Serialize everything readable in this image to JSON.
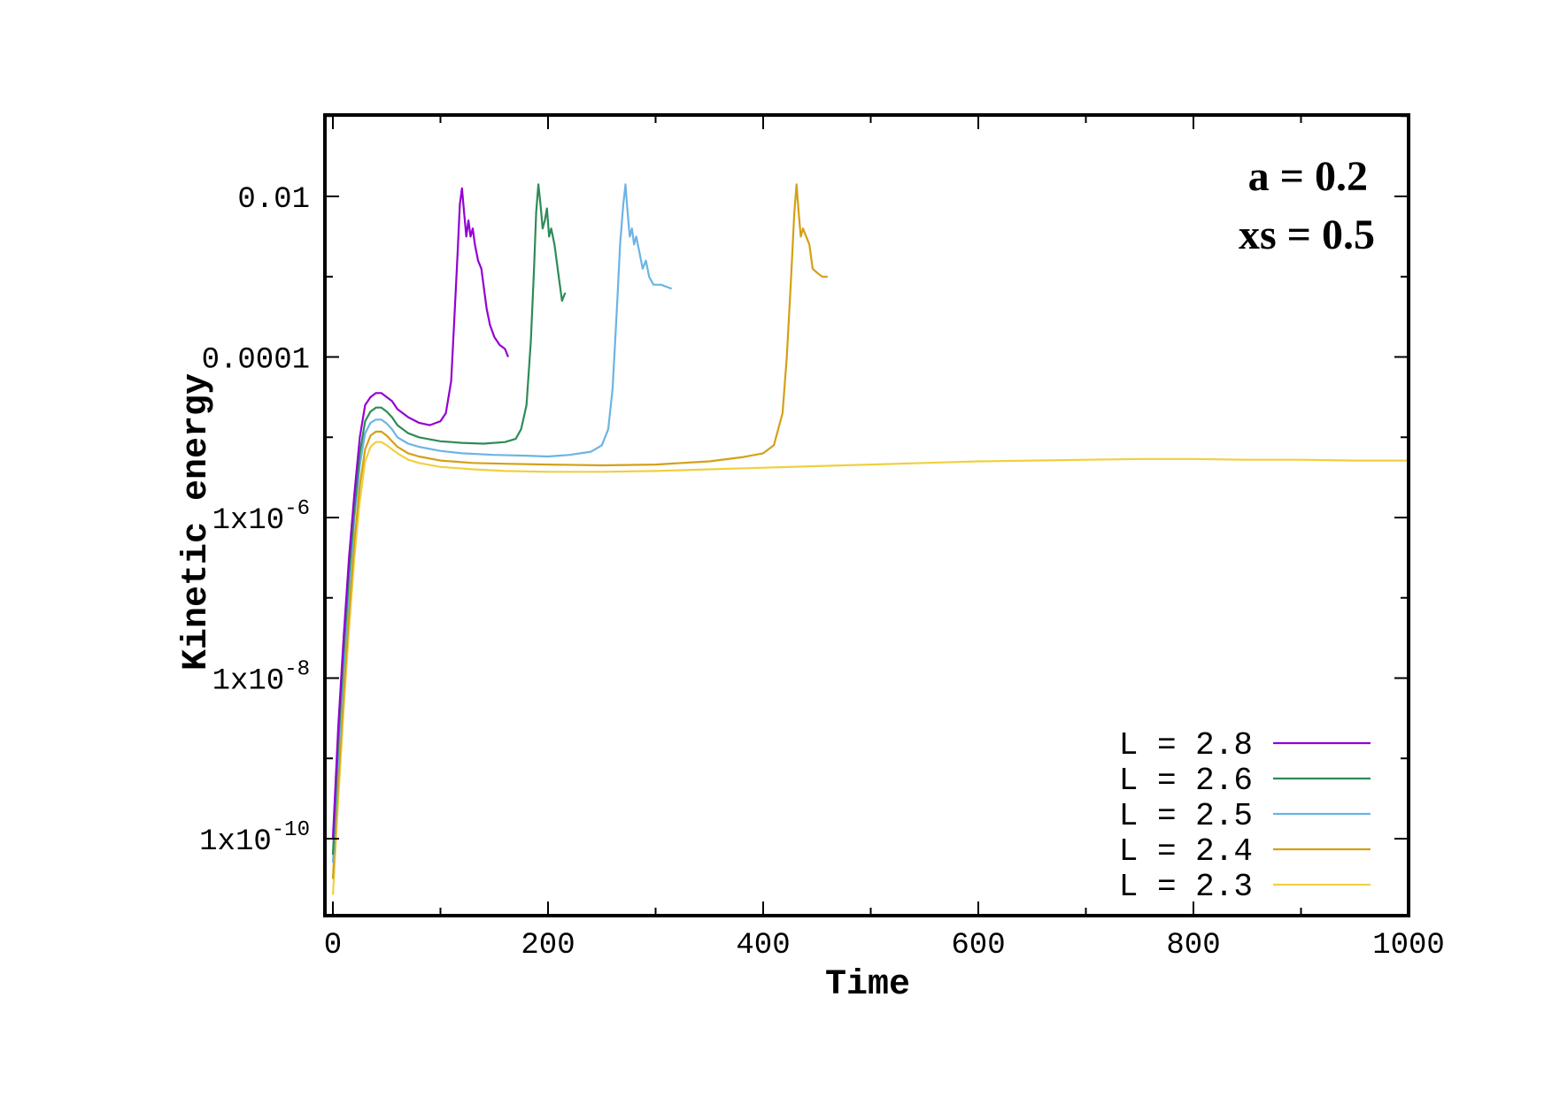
{
  "chart_data": {
    "type": "line",
    "xlabel": "Time",
    "ylabel": "Kinetic energy",
    "yscale": "log",
    "xlim": [
      0,
      1000
    ],
    "ylim_log10": [
      -11.5,
      -1
    ],
    "x_ticks": [
      {
        "value": 0,
        "label": "0"
      },
      {
        "value": 200,
        "label": "200"
      },
      {
        "value": 400,
        "label": "400"
      },
      {
        "value": 600,
        "label": "600"
      },
      {
        "value": 800,
        "label": "800"
      },
      {
        "value": 1000,
        "label": "1000"
      }
    ],
    "y_ticks": [
      {
        "log10": -2,
        "base": "0.01",
        "exp": ""
      },
      {
        "log10": -4,
        "base": "0.0001",
        "exp": ""
      },
      {
        "log10": -6,
        "base": "1x10",
        "exp": "-6"
      },
      {
        "log10": -8,
        "base": "1x10",
        "exp": "-8"
      },
      {
        "log10": -10,
        "base": "1x10",
        "exp": "-10"
      }
    ],
    "annotations": [
      "a = 0.2",
      "xs = 0.5"
    ],
    "legend_position": "bottom-right",
    "grid": false,
    "series": [
      {
        "name": "L = 2.8",
        "color": "#9400d3",
        "points": [
          [
            0,
            -10
          ],
          [
            5,
            -8.6
          ],
          [
            10,
            -7.5
          ],
          [
            15,
            -6.5
          ],
          [
            20,
            -5.7
          ],
          [
            25,
            -5.0
          ],
          [
            30,
            -4.6
          ],
          [
            35,
            -4.5
          ],
          [
            40,
            -4.45
          ],
          [
            45,
            -4.45
          ],
          [
            50,
            -4.5
          ],
          [
            55,
            -4.55
          ],
          [
            60,
            -4.65
          ],
          [
            70,
            -4.75
          ],
          [
            80,
            -4.82
          ],
          [
            90,
            -4.85
          ],
          [
            100,
            -4.8
          ],
          [
            105,
            -4.7
          ],
          [
            110,
            -4.3
          ],
          [
            113,
            -3.5
          ],
          [
            116,
            -2.7
          ],
          [
            118,
            -2.1
          ],
          [
            120,
            -1.9
          ],
          [
            122,
            -2.2
          ],
          [
            124,
            -2.5
          ],
          [
            126,
            -2.3
          ],
          [
            128,
            -2.5
          ],
          [
            130,
            -2.4
          ],
          [
            132,
            -2.6
          ],
          [
            135,
            -2.8
          ],
          [
            138,
            -2.9
          ],
          [
            140,
            -3.1
          ],
          [
            143,
            -3.4
          ],
          [
            146,
            -3.6
          ],
          [
            150,
            -3.75
          ],
          [
            155,
            -3.85
          ],
          [
            160,
            -3.9
          ],
          [
            163,
            -4.0
          ]
        ]
      },
      {
        "name": "L = 2.6",
        "color": "#2e8b57",
        "points": [
          [
            0,
            -10.2
          ],
          [
            5,
            -8.8
          ],
          [
            10,
            -7.7
          ],
          [
            15,
            -6.7
          ],
          [
            20,
            -5.9
          ],
          [
            25,
            -5.2
          ],
          [
            30,
            -4.8
          ],
          [
            35,
            -4.68
          ],
          [
            40,
            -4.63
          ],
          [
            45,
            -4.63
          ],
          [
            50,
            -4.68
          ],
          [
            55,
            -4.75
          ],
          [
            60,
            -4.85
          ],
          [
            70,
            -4.95
          ],
          [
            80,
            -5.0
          ],
          [
            100,
            -5.05
          ],
          [
            120,
            -5.07
          ],
          [
            140,
            -5.08
          ],
          [
            160,
            -5.06
          ],
          [
            170,
            -5.02
          ],
          [
            175,
            -4.9
          ],
          [
            180,
            -4.6
          ],
          [
            184,
            -3.8
          ],
          [
            187,
            -2.9
          ],
          [
            189,
            -2.2
          ],
          [
            191,
            -1.85
          ],
          [
            193,
            -2.1
          ],
          [
            195,
            -2.4
          ],
          [
            197,
            -2.3
          ],
          [
            199,
            -2.15
          ],
          [
            201,
            -2.5
          ],
          [
            203,
            -2.4
          ],
          [
            206,
            -2.6
          ],
          [
            210,
            -3.0
          ],
          [
            213,
            -3.3
          ],
          [
            216,
            -3.2
          ]
        ]
      },
      {
        "name": "L = 2.5",
        "color": "#6cb4e4",
        "points": [
          [
            0,
            -10.3
          ],
          [
            5,
            -9.0
          ],
          [
            10,
            -7.9
          ],
          [
            15,
            -6.9
          ],
          [
            20,
            -6.0
          ],
          [
            25,
            -5.35
          ],
          [
            30,
            -4.95
          ],
          [
            35,
            -4.82
          ],
          [
            40,
            -4.78
          ],
          [
            45,
            -4.78
          ],
          [
            50,
            -4.83
          ],
          [
            55,
            -4.9
          ],
          [
            60,
            -5.0
          ],
          [
            70,
            -5.08
          ],
          [
            80,
            -5.12
          ],
          [
            100,
            -5.17
          ],
          [
            120,
            -5.2
          ],
          [
            150,
            -5.22
          ],
          [
            180,
            -5.23
          ],
          [
            200,
            -5.24
          ],
          [
            220,
            -5.22
          ],
          [
            240,
            -5.18
          ],
          [
            250,
            -5.1
          ],
          [
            256,
            -4.9
          ],
          [
            260,
            -4.4
          ],
          [
            264,
            -3.4
          ],
          [
            267,
            -2.6
          ],
          [
            270,
            -2.1
          ],
          [
            272,
            -1.85
          ],
          [
            274,
            -2.2
          ],
          [
            276,
            -2.5
          ],
          [
            278,
            -2.4
          ],
          [
            280,
            -2.6
          ],
          [
            282,
            -2.5
          ],
          [
            285,
            -2.7
          ],
          [
            288,
            -2.9
          ],
          [
            291,
            -2.8
          ],
          [
            294,
            -3.0
          ],
          [
            298,
            -3.1
          ],
          [
            305,
            -3.1
          ],
          [
            315,
            -3.15
          ]
        ]
      },
      {
        "name": "L = 2.4",
        "color": "#d4a017",
        "points": [
          [
            0,
            -10.5
          ],
          [
            5,
            -9.3
          ],
          [
            10,
            -8.2
          ],
          [
            15,
            -7.2
          ],
          [
            20,
            -6.3
          ],
          [
            25,
            -5.6
          ],
          [
            30,
            -5.15
          ],
          [
            35,
            -4.98
          ],
          [
            40,
            -4.93
          ],
          [
            45,
            -4.93
          ],
          [
            50,
            -4.98
          ],
          [
            55,
            -5.05
          ],
          [
            60,
            -5.12
          ],
          [
            70,
            -5.2
          ],
          [
            80,
            -5.24
          ],
          [
            100,
            -5.29
          ],
          [
            130,
            -5.32
          ],
          [
            160,
            -5.33
          ],
          [
            200,
            -5.34
          ],
          [
            250,
            -5.35
          ],
          [
            300,
            -5.34
          ],
          [
            350,
            -5.3
          ],
          [
            380,
            -5.25
          ],
          [
            400,
            -5.2
          ],
          [
            410,
            -5.1
          ],
          [
            418,
            -4.7
          ],
          [
            422,
            -4.0
          ],
          [
            426,
            -3.0
          ],
          [
            429,
            -2.2
          ],
          [
            431,
            -1.85
          ],
          [
            433,
            -2.2
          ],
          [
            435,
            -2.5
          ],
          [
            437,
            -2.4
          ],
          [
            440,
            -2.5
          ],
          [
            443,
            -2.6
          ],
          [
            446,
            -2.9
          ],
          [
            450,
            -2.95
          ],
          [
            455,
            -3.0
          ],
          [
            460,
            -3.0
          ]
        ]
      },
      {
        "name": "L = 2.3",
        "color": "#f0d040",
        "points": [
          [
            0,
            -10.7
          ],
          [
            5,
            -9.5
          ],
          [
            10,
            -8.4
          ],
          [
            15,
            -7.4
          ],
          [
            20,
            -6.5
          ],
          [
            25,
            -5.8
          ],
          [
            30,
            -5.3
          ],
          [
            35,
            -5.12
          ],
          [
            40,
            -5.06
          ],
          [
            45,
            -5.06
          ],
          [
            50,
            -5.1
          ],
          [
            60,
            -5.2
          ],
          [
            70,
            -5.28
          ],
          [
            80,
            -5.32
          ],
          [
            100,
            -5.37
          ],
          [
            130,
            -5.4
          ],
          [
            160,
            -5.42
          ],
          [
            200,
            -5.43
          ],
          [
            250,
            -5.43
          ],
          [
            300,
            -5.42
          ],
          [
            350,
            -5.4
          ],
          [
            400,
            -5.38
          ],
          [
            450,
            -5.36
          ],
          [
            500,
            -5.34
          ],
          [
            550,
            -5.32
          ],
          [
            600,
            -5.3
          ],
          [
            650,
            -5.29
          ],
          [
            700,
            -5.28
          ],
          [
            750,
            -5.27
          ],
          [
            800,
            -5.27
          ],
          [
            850,
            -5.28
          ],
          [
            900,
            -5.28
          ],
          [
            950,
            -5.29
          ],
          [
            1000,
            -5.29
          ]
        ]
      }
    ]
  }
}
